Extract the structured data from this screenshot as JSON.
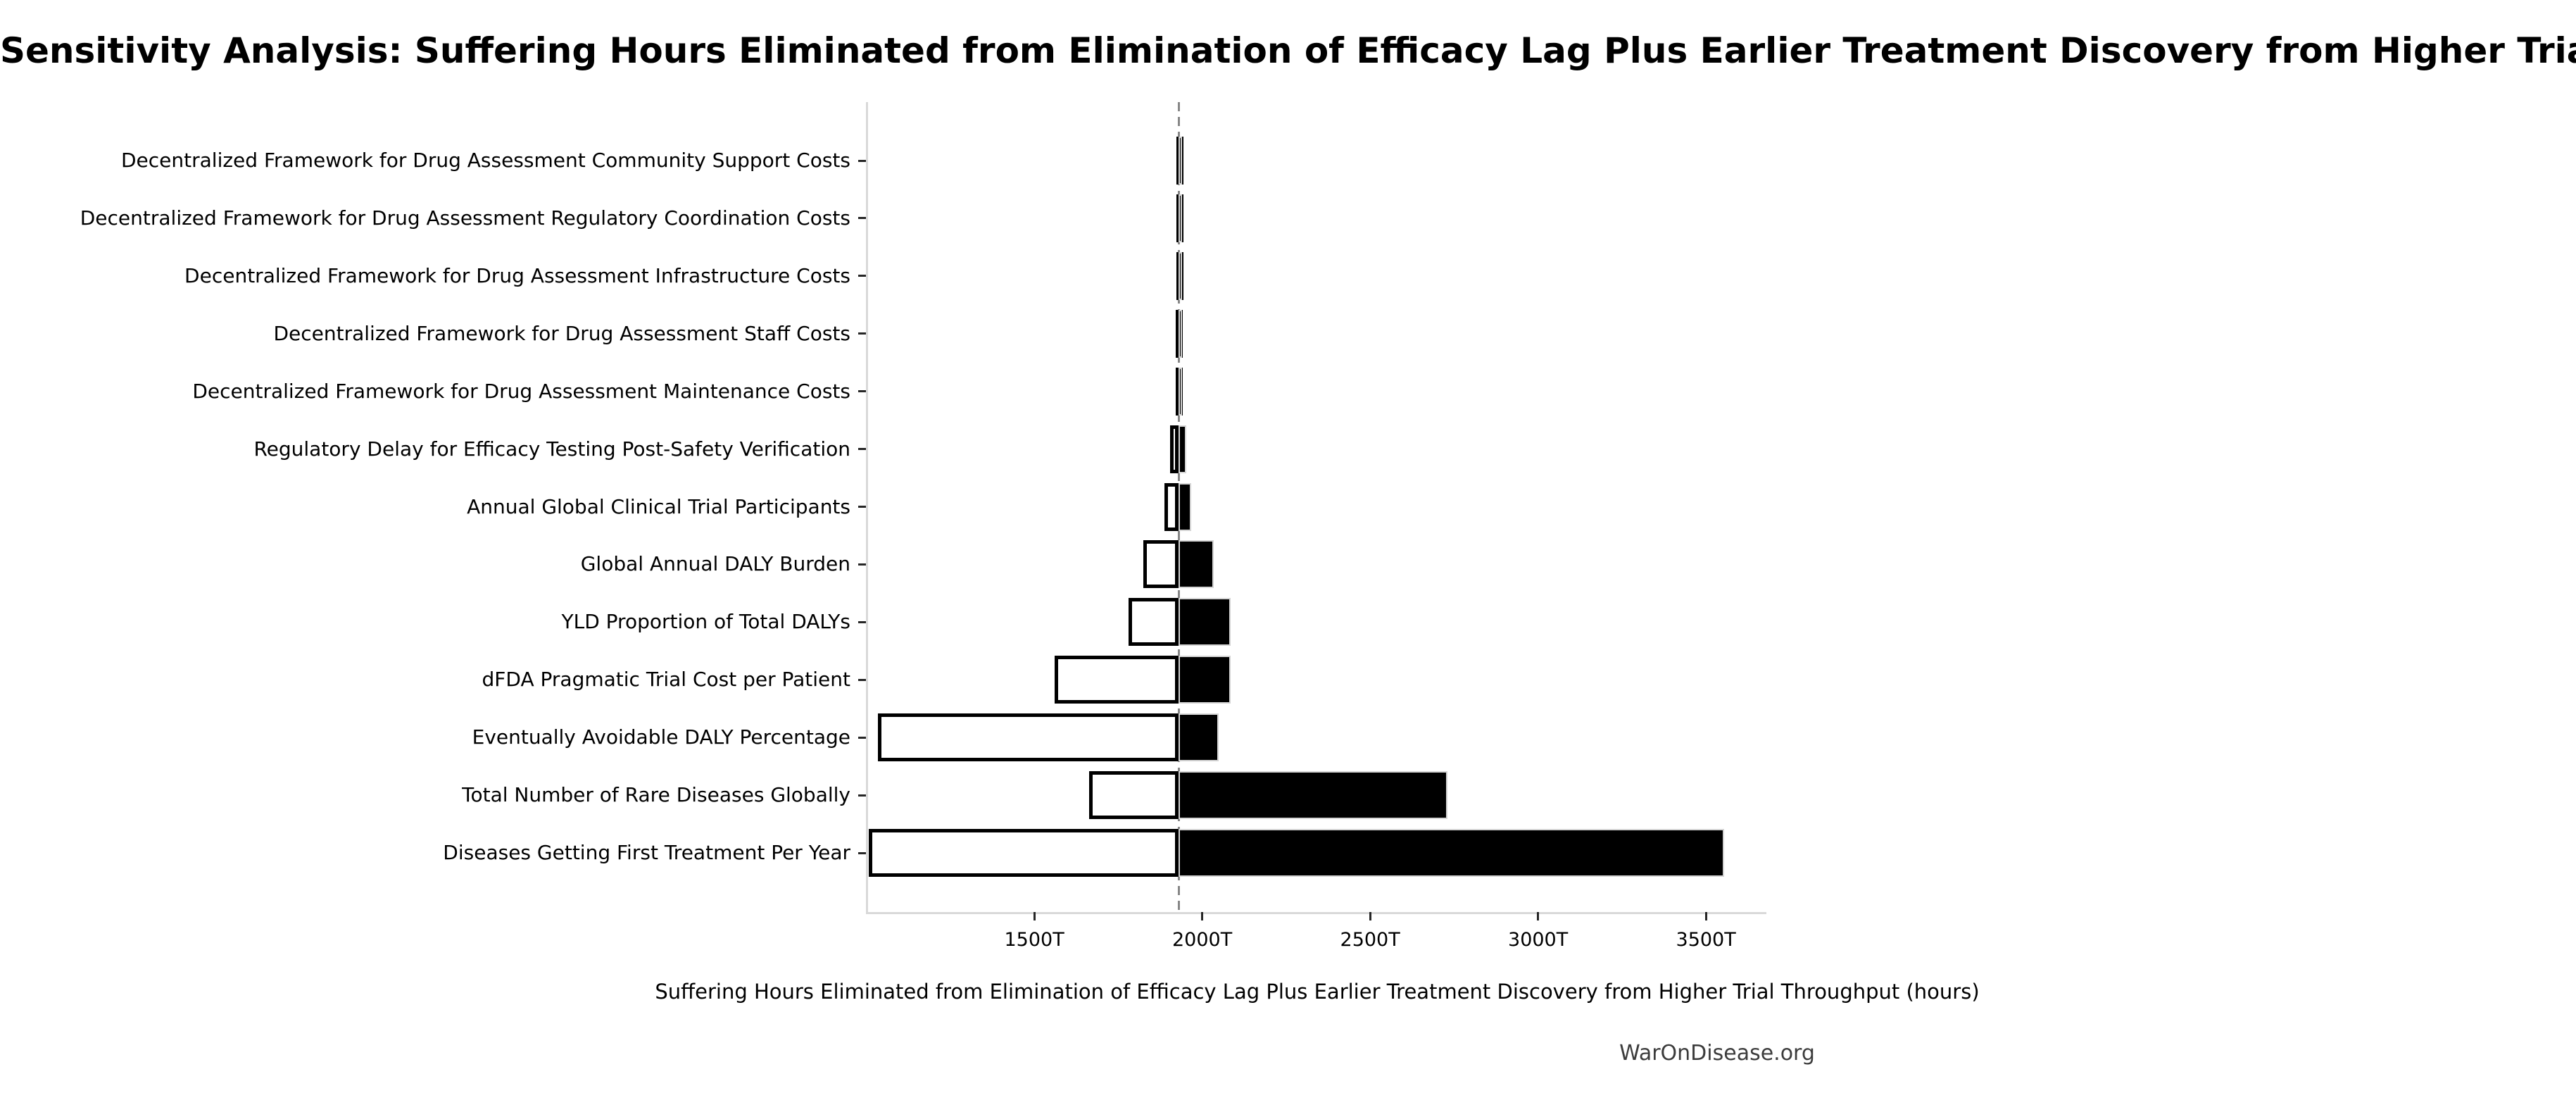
{
  "header": {
    "title": "Sensitivity Analysis: Suffering Hours Eliminated from Elimination of Efficacy Lag Plus Earlier Treatment Discovery from Higher Trial Throughput"
  },
  "footer": {
    "watermark": "WarOnDisease.org"
  },
  "chart_data": {
    "type": "bar",
    "subtype": "tornado-horizontal",
    "title": "Sensitivity Analysis: Suffering Hours Eliminated from Elimination of Efficacy Lag Plus Earlier Treatment Discovery from Higher Trial Throughput",
    "xlabel": "Suffering Hours Eliminated from Elimination of Efficacy Lag Plus Earlier Treatment Discovery from Higher Trial Throughput (hours)",
    "value_unit": "trillions of hours",
    "unit_suffix": "T",
    "baseline_value": 1930,
    "xlim": [
      1005,
      3680
    ],
    "grid": false,
    "legend_position": "none",
    "x_ticks": [
      {
        "value": 1500,
        "label": "1500T"
      },
      {
        "value": 2000,
        "label": "2000T"
      },
      {
        "value": 2500,
        "label": "2500T"
      },
      {
        "value": 3000,
        "label": "3000T"
      },
      {
        "value": 3500,
        "label": "3500T"
      }
    ],
    "categories": [
      "Decentralized Framework for Drug Assessment Community Support Costs",
      "Decentralized Framework for Drug Assessment Regulatory Coordination Costs",
      "Decentralized Framework for Drug Assessment Infrastructure Costs",
      "Decentralized Framework for Drug Assessment Staff Costs",
      "Decentralized Framework for Drug Assessment Maintenance Costs",
      "Regulatory Delay for Efficacy Testing Post-Safety Verification",
      "Annual Global Clinical Trial Participants",
      "Global Annual DALY Burden",
      "YLD Proportion of Total DALYs",
      "dFDA Pragmatic Trial Cost per Patient",
      "Eventually Avoidable DALY Percentage",
      "Total Number of Rare Diseases Globally",
      "Diseases Getting First Treatment Per Year"
    ],
    "series": [
      {
        "name": "Low estimate (white bar)",
        "values": [
          1923,
          1923,
          1923,
          1922,
          1922,
          1905,
          1888,
          1825,
          1780,
          1560,
          1035,
          1664,
          1008
        ]
      },
      {
        "name": "High estimate (black bar)",
        "values": [
          1937,
          1937,
          1937,
          1938,
          1938,
          1953,
          1968,
          2035,
          2085,
          2085,
          2048,
          2730,
          3555
        ]
      }
    ],
    "colors": {
      "low_fill": "#ffffff",
      "low_edge": "#000000",
      "high_fill": "#000000",
      "high_edge": "#d4d4d4",
      "baseline_line": "#878787",
      "spine": "#d9d9d9",
      "tick": "#262626"
    }
  }
}
